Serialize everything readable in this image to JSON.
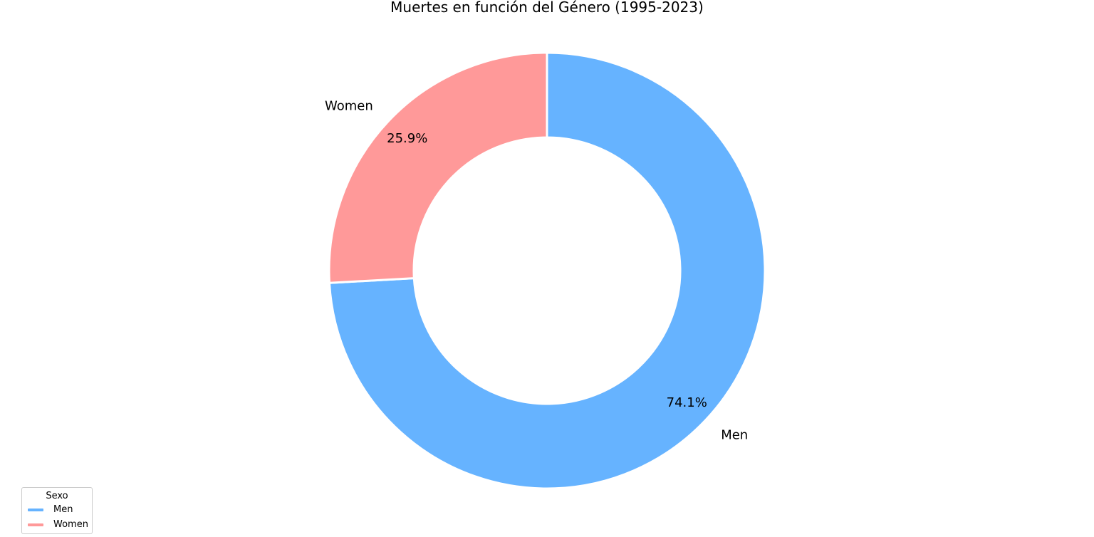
{
  "chart_data": {
    "type": "pie",
    "donut": true,
    "title": "Muertes en función del Género (1995-2023)",
    "labels": [
      "Men",
      "Women"
    ],
    "values": [
      74.1,
      25.9
    ],
    "value_labels": [
      "74.1%",
      "25.9%"
    ],
    "colors": [
      "#66b3ff",
      "#ff9999"
    ],
    "start": "top, clockwise",
    "legend": {
      "title": "Sexo",
      "placement": "bottom-left",
      "entries": [
        "Men",
        "Women"
      ]
    }
  }
}
